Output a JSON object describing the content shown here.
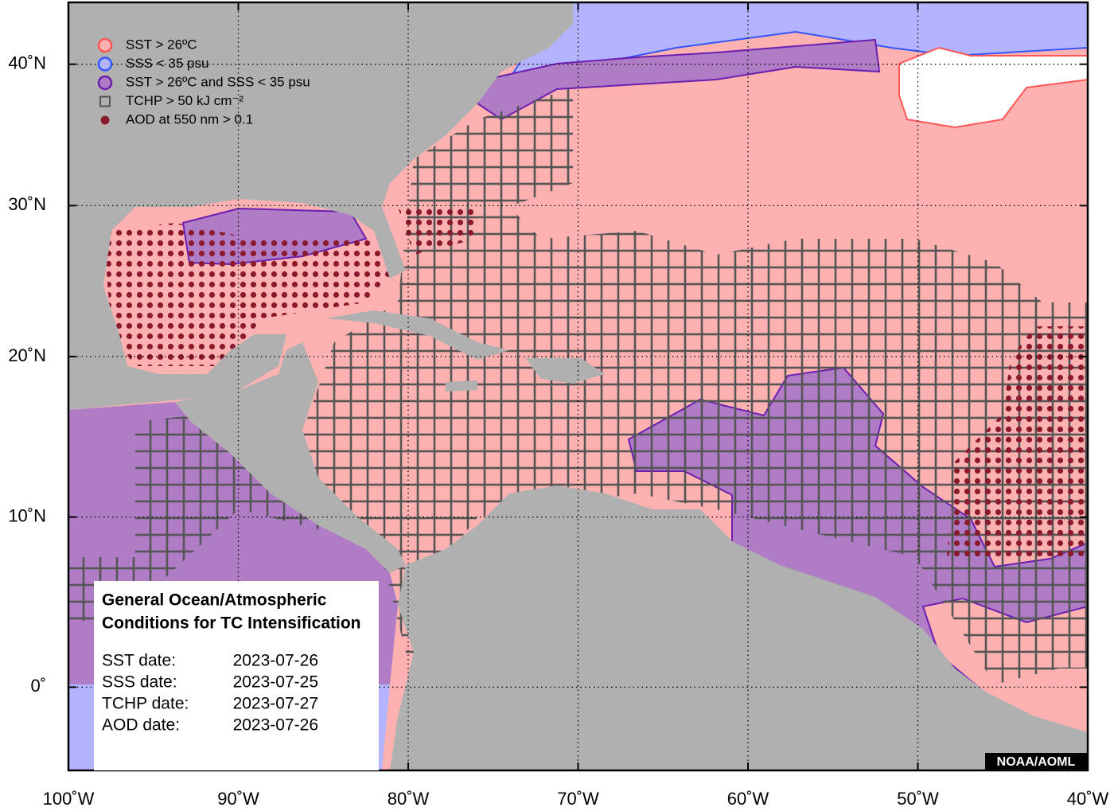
{
  "map": {
    "xlim": [
      -100,
      -40
    ],
    "ylim": [
      -4.7,
      44.6
    ],
    "xticks": [
      {
        "value": -100,
        "label": "100˚W"
      },
      {
        "value": -90,
        "label": "90˚W"
      },
      {
        "value": -80,
        "label": "80˚W"
      },
      {
        "value": -70,
        "label": "70˚W"
      },
      {
        "value": -60,
        "label": "60˚W"
      },
      {
        "value": -50,
        "label": "50˚W"
      },
      {
        "value": -40,
        "label": "40˚W"
      }
    ],
    "yticks": [
      {
        "value": 0,
        "label": "0˚"
      },
      {
        "value": 10,
        "label": "10˚N"
      },
      {
        "value": 20,
        "label": "20˚N"
      },
      {
        "value": 30,
        "label": "30˚N"
      },
      {
        "value": 40,
        "label": "40˚N"
      }
    ],
    "grid": true,
    "legend": [
      {
        "label": "SST > 26ºC",
        "symbol": "circle",
        "fill": "#fdb1b1",
        "stroke": "#ff5555"
      },
      {
        "label": "SSS < 35 psu",
        "symbol": "circle",
        "fill": "#b3b3ff",
        "stroke": "#3355ff"
      },
      {
        "label": "SST > 26ºC and SSS < 35 psu",
        "symbol": "circle",
        "fill": "#b07cc6",
        "stroke": "#6a1fb0"
      },
      {
        "label": "TCHP > 50 kJ cm⁻²",
        "symbol": "square",
        "fill": "none",
        "stroke": "#555555"
      },
      {
        "label": "AOD at 550 nm > 0.1",
        "symbol": "dot",
        "fill": "#8b1a2e",
        "stroke": "#8b1a2e"
      }
    ],
    "info": {
      "title": [
        "General Ocean/Atmospheric",
        "Conditions for TC Intensification"
      ],
      "dates": [
        {
          "label": "SST date:",
          "value": "2023-07-26"
        },
        {
          "label": "SSS date:",
          "value": "2023-07-25"
        },
        {
          "label": "TCHP date:",
          "value": "2023-07-27"
        },
        {
          "label": "AOD date:",
          "value": "2023-07-26"
        }
      ]
    },
    "credit": "NOAA/AOML"
  }
}
